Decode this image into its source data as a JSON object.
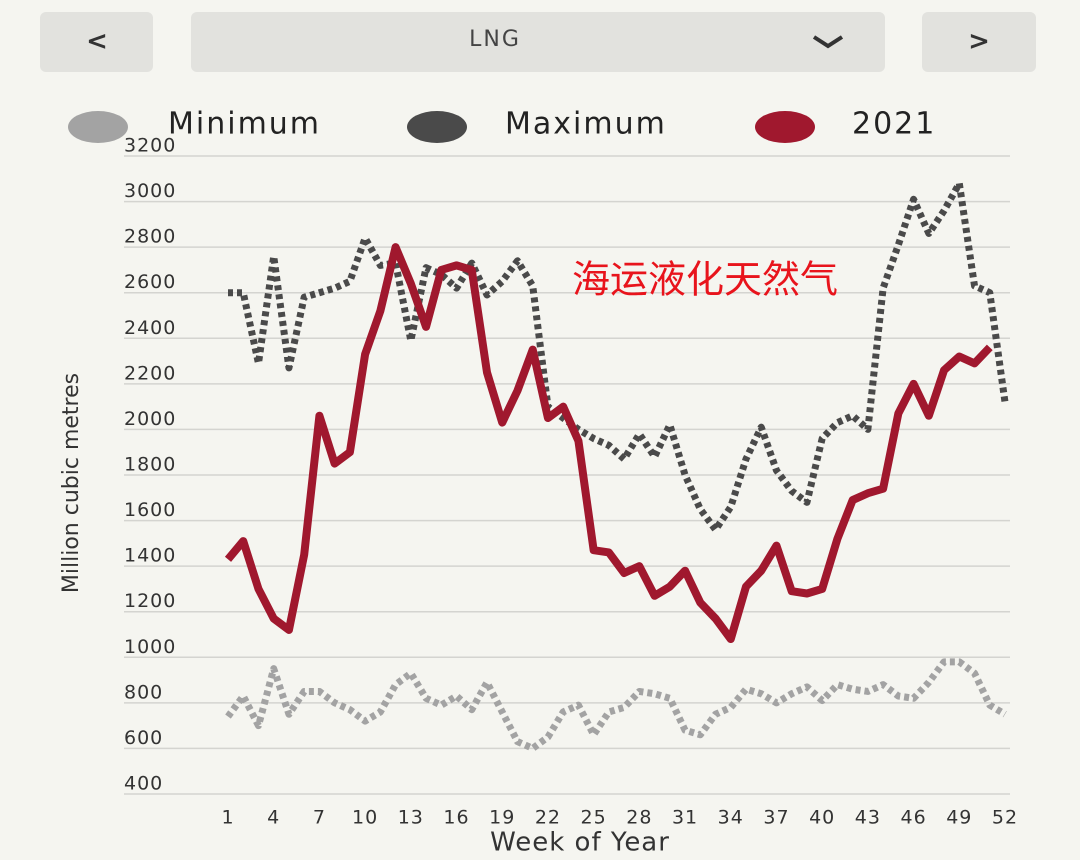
{
  "ui": {
    "prev_button": "<",
    "selector": "LNG",
    "next_button": ">"
  },
  "chart_data": {
    "type": "line",
    "annotation": "海运液化天然气",
    "x_label": "Week of Year",
    "y_label": "Million cubic metres",
    "x": [
      1,
      2,
      3,
      4,
      5,
      6,
      7,
      8,
      9,
      10,
      11,
      12,
      13,
      14,
      15,
      16,
      17,
      18,
      19,
      20,
      21,
      22,
      23,
      24,
      25,
      26,
      27,
      28,
      29,
      30,
      31,
      32,
      33,
      34,
      35,
      36,
      37,
      38,
      39,
      40,
      41,
      42,
      43,
      44,
      45,
      46,
      47,
      48,
      49,
      50,
      51,
      52
    ],
    "xlim": [
      1,
      52
    ],
    "xticks": [
      1,
      4,
      7,
      10,
      13,
      16,
      19,
      22,
      25,
      28,
      31,
      34,
      37,
      40,
      43,
      46,
      49,
      52
    ],
    "ylim": [
      400,
      3200
    ],
    "yticks": [
      400,
      600,
      800,
      1000,
      1200,
      1400,
      1600,
      1800,
      2000,
      2200,
      2400,
      2600,
      2800,
      3000,
      3200
    ],
    "grid": true,
    "legend_position": "top",
    "series": [
      {
        "name": "Minimum",
        "color": "#a3a3a3",
        "dashed": true,
        "values": [
          740,
          830,
          700,
          950,
          750,
          850,
          850,
          800,
          770,
          720,
          760,
          880,
          930,
          820,
          790,
          830,
          770,
          890,
          760,
          630,
          600,
          650,
          760,
          790,
          660,
          760,
          780,
          850,
          840,
          820,
          680,
          660,
          750,
          780,
          860,
          840,
          800,
          840,
          870,
          810,
          880,
          860,
          850,
          880,
          830,
          820,
          890,
          980,
          980,
          930,
          790,
          750
        ]
      },
      {
        "name": "Maximum",
        "color": "#4a4a4a",
        "dashed": true,
        "values": [
          2600,
          2600,
          2290,
          2760,
          2270,
          2580,
          2600,
          2620,
          2650,
          2840,
          2720,
          2730,
          2390,
          2710,
          2680,
          2620,
          2730,
          2590,
          2650,
          2740,
          2630,
          2100,
          2050,
          2000,
          1960,
          1930,
          1870,
          1980,
          1880,
          2020,
          1800,
          1650,
          1560,
          1660,
          1870,
          2010,
          1820,
          1730,
          1680,
          1960,
          2030,
          2060,
          2000,
          2620,
          2810,
          3010,
          2860,
          2960,
          3080,
          2630,
          2600,
          2120
        ]
      },
      {
        "name": "2021",
        "color": "#a0182e",
        "dashed": false,
        "values": [
          1430,
          1510,
          1300,
          1170,
          1120,
          1450,
          2060,
          1850,
          1900,
          2330,
          2520,
          2800,
          2640,
          2450,
          2700,
          2720,
          2700,
          2250,
          2030,
          2170,
          2350,
          2050,
          2100,
          1950,
          1470,
          1460,
          1370,
          1400,
          1270,
          1310,
          1380,
          1240,
          1170,
          1080,
          1310,
          1380,
          1490,
          1290,
          1280,
          1300,
          1520,
          1690,
          1720,
          1740,
          2070,
          2200,
          2060,
          2260,
          2320,
          2290,
          2360,
          null
        ]
      }
    ]
  }
}
